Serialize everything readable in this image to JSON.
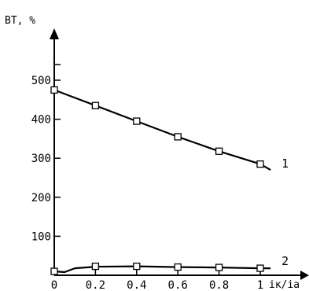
{
  "chart_data": {
    "type": "line",
    "title": "",
    "ylabel": "BT, %",
    "xlabel": "iк/iа",
    "xlim": [
      0,
      1.1
    ],
    "ylim": [
      0,
      540
    ],
    "x_ticks": [
      "0",
      "0.2",
      "0.4",
      "0.6",
      "0.8",
      "1"
    ],
    "y_ticks": [
      "100",
      "200",
      "300",
      "400",
      "500"
    ],
    "grid": false,
    "series": [
      {
        "name": "1",
        "x": [
          0,
          0.2,
          0.4,
          0.6,
          0.8,
          1.0
        ],
        "y": [
          475,
          435,
          395,
          355,
          318,
          285
        ],
        "curve": {
          "x": [
            0,
            0.2,
            0.4,
            0.6,
            0.8,
            1.0,
            1.05
          ],
          "y": [
            475,
            435,
            395,
            355,
            318,
            285,
            270
          ]
        }
      },
      {
        "name": "2",
        "x": [
          0,
          0.2,
          0.4,
          0.6,
          0.8,
          1.0
        ],
        "y": [
          10,
          23,
          23,
          21,
          20,
          18
        ],
        "curve": {
          "x": [
            0,
            0.05,
            0.1,
            0.2,
            0.4,
            0.6,
            0.8,
            1.0,
            1.05
          ],
          "y": [
            10,
            8,
            18,
            22,
            23,
            21,
            20,
            18,
            18
          ]
        }
      }
    ]
  }
}
